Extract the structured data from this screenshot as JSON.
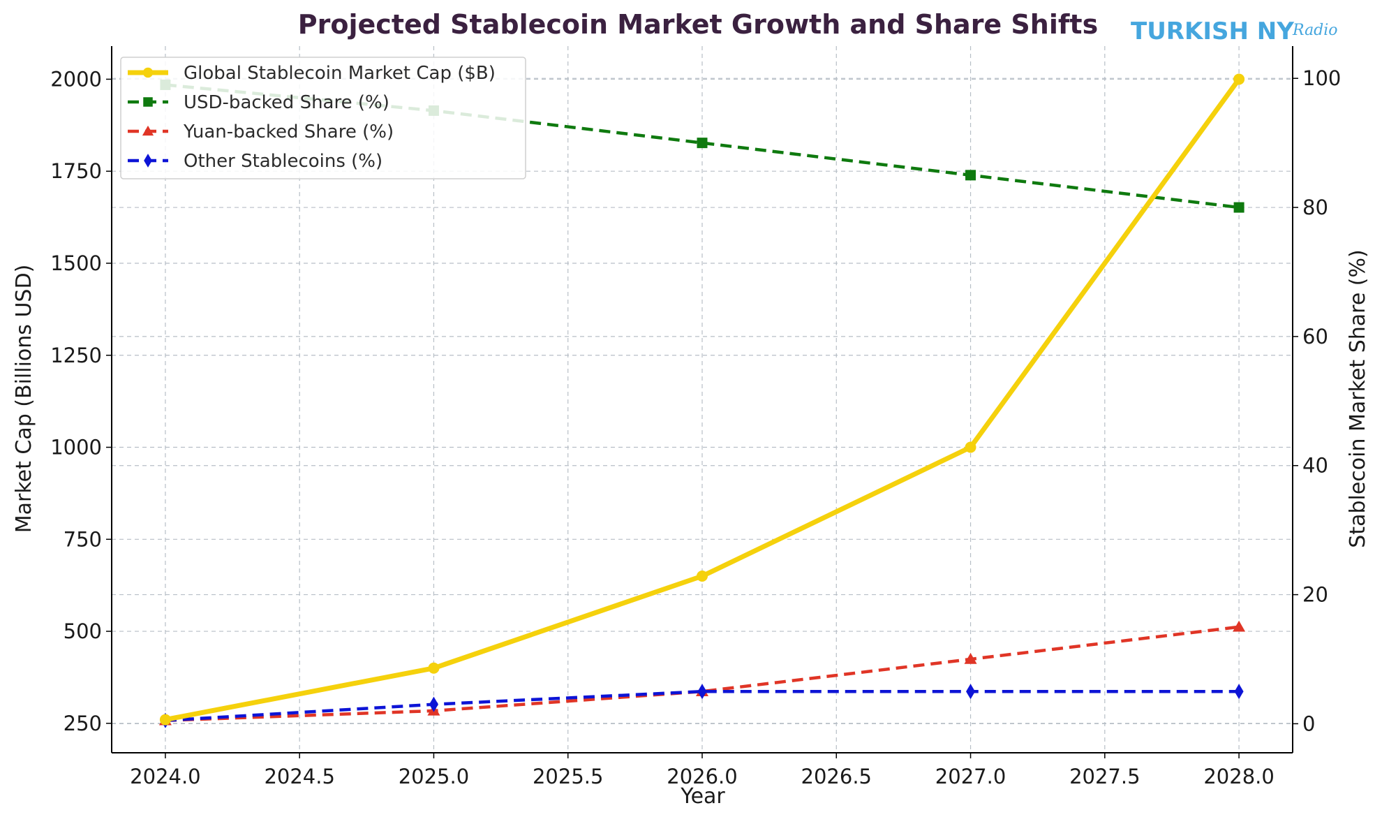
{
  "chart_data": {
    "type": "line",
    "title": "Projected Stablecoin Market Growth and Share Shifts",
    "xlabel": "Year",
    "ylabel_left": "Market Cap (Billions USD)",
    "ylabel_right": "Stablecoin Market Share (%)",
    "x": [
      2024,
      2025,
      2026,
      2027,
      2028
    ],
    "xlim": [
      2023.8,
      2028.2
    ],
    "x_ticks": [
      "2024.0",
      "2024.5",
      "2025.0",
      "2025.5",
      "2026.0",
      "2026.5",
      "2027.0",
      "2027.5",
      "2028.0"
    ],
    "ylim_left": [
      170,
      2090
    ],
    "y_ticks_left": [
      "250",
      "500",
      "750",
      "1000",
      "1250",
      "1500",
      "1750",
      "2000"
    ],
    "ylim_right": [
      -4.5,
      105
    ],
    "y_ticks_right": [
      "0",
      "20",
      "40",
      "60",
      "80",
      "100"
    ],
    "grid": true,
    "legend_position": "upper-left",
    "series": [
      {
        "name": "Global Stablecoin Market Cap ($B)",
        "axis": "left",
        "values": [
          260,
          400,
          650,
          1000,
          2000
        ],
        "color": "#f5d10c",
        "line": "solid",
        "marker": "circle"
      },
      {
        "name": "USD-backed Share (%)",
        "axis": "right",
        "values": [
          99,
          95,
          90,
          85,
          80
        ],
        "color": "#0f7a0f",
        "line": "dashed",
        "marker": "square"
      },
      {
        "name": "Yuan-backed Share (%)",
        "axis": "right",
        "values": [
          0.5,
          2,
          5,
          10,
          15
        ],
        "color": "#e03526",
        "line": "dashed",
        "marker": "triangle"
      },
      {
        "name": "Other Stablecoins (%)",
        "axis": "right",
        "values": [
          0.5,
          3,
          5,
          5,
          5
        ],
        "color": "#0d14d6",
        "line": "dashed",
        "marker": "diamond"
      }
    ]
  },
  "watermark": {
    "brand": "TURKISH NY",
    "sub": "Radio"
  }
}
